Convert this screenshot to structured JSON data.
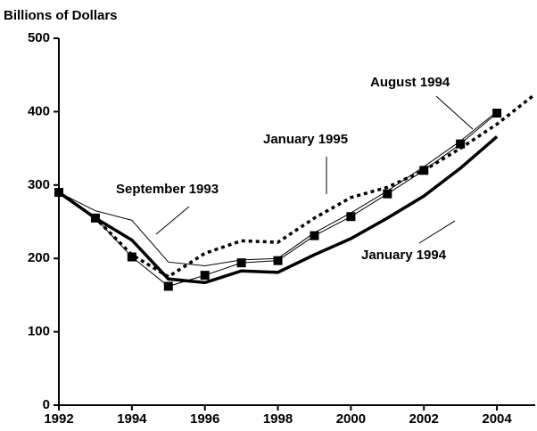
{
  "chart_data": {
    "type": "line",
    "ylabel": "Billions of Dollars",
    "x": [
      1992,
      1993,
      1994,
      1995,
      1996,
      1997,
      1998,
      1999,
      2000,
      2001,
      2002,
      2003,
      2004,
      2005
    ],
    "series": [
      {
        "name": "September 1993",
        "color": "#000000",
        "style": "thin",
        "values": [
          290,
          265,
          252,
          195,
          190,
          198,
          200,
          235,
          262,
          292,
          325,
          360,
          400,
          null
        ]
      },
      {
        "name": "August 1994",
        "color": "#000000",
        "style": "squares",
        "values": [
          290,
          255,
          202,
          162,
          177,
          194,
          197,
          231,
          257,
          288,
          320,
          356,
          398,
          null
        ]
      },
      {
        "name": "January 1994",
        "color": "#000000",
        "style": "thick",
        "values": [
          290,
          255,
          225,
          172,
          167,
          183,
          181,
          205,
          227,
          255,
          285,
          323,
          366,
          null
        ]
      },
      {
        "name": "January 1995",
        "color": "#000000",
        "style": "dotted",
        "values": [
          290,
          255,
          205,
          175,
          207,
          224,
          222,
          255,
          283,
          297,
          320,
          350,
          383,
          422
        ]
      }
    ],
    "xlim": [
      1992,
      2005
    ],
    "xticks": [
      1992,
      1994,
      1996,
      1998,
      2000,
      2002,
      2004
    ],
    "ylim": [
      0,
      500
    ],
    "yticks": [
      0,
      100,
      200,
      300,
      400,
      500
    ]
  }
}
